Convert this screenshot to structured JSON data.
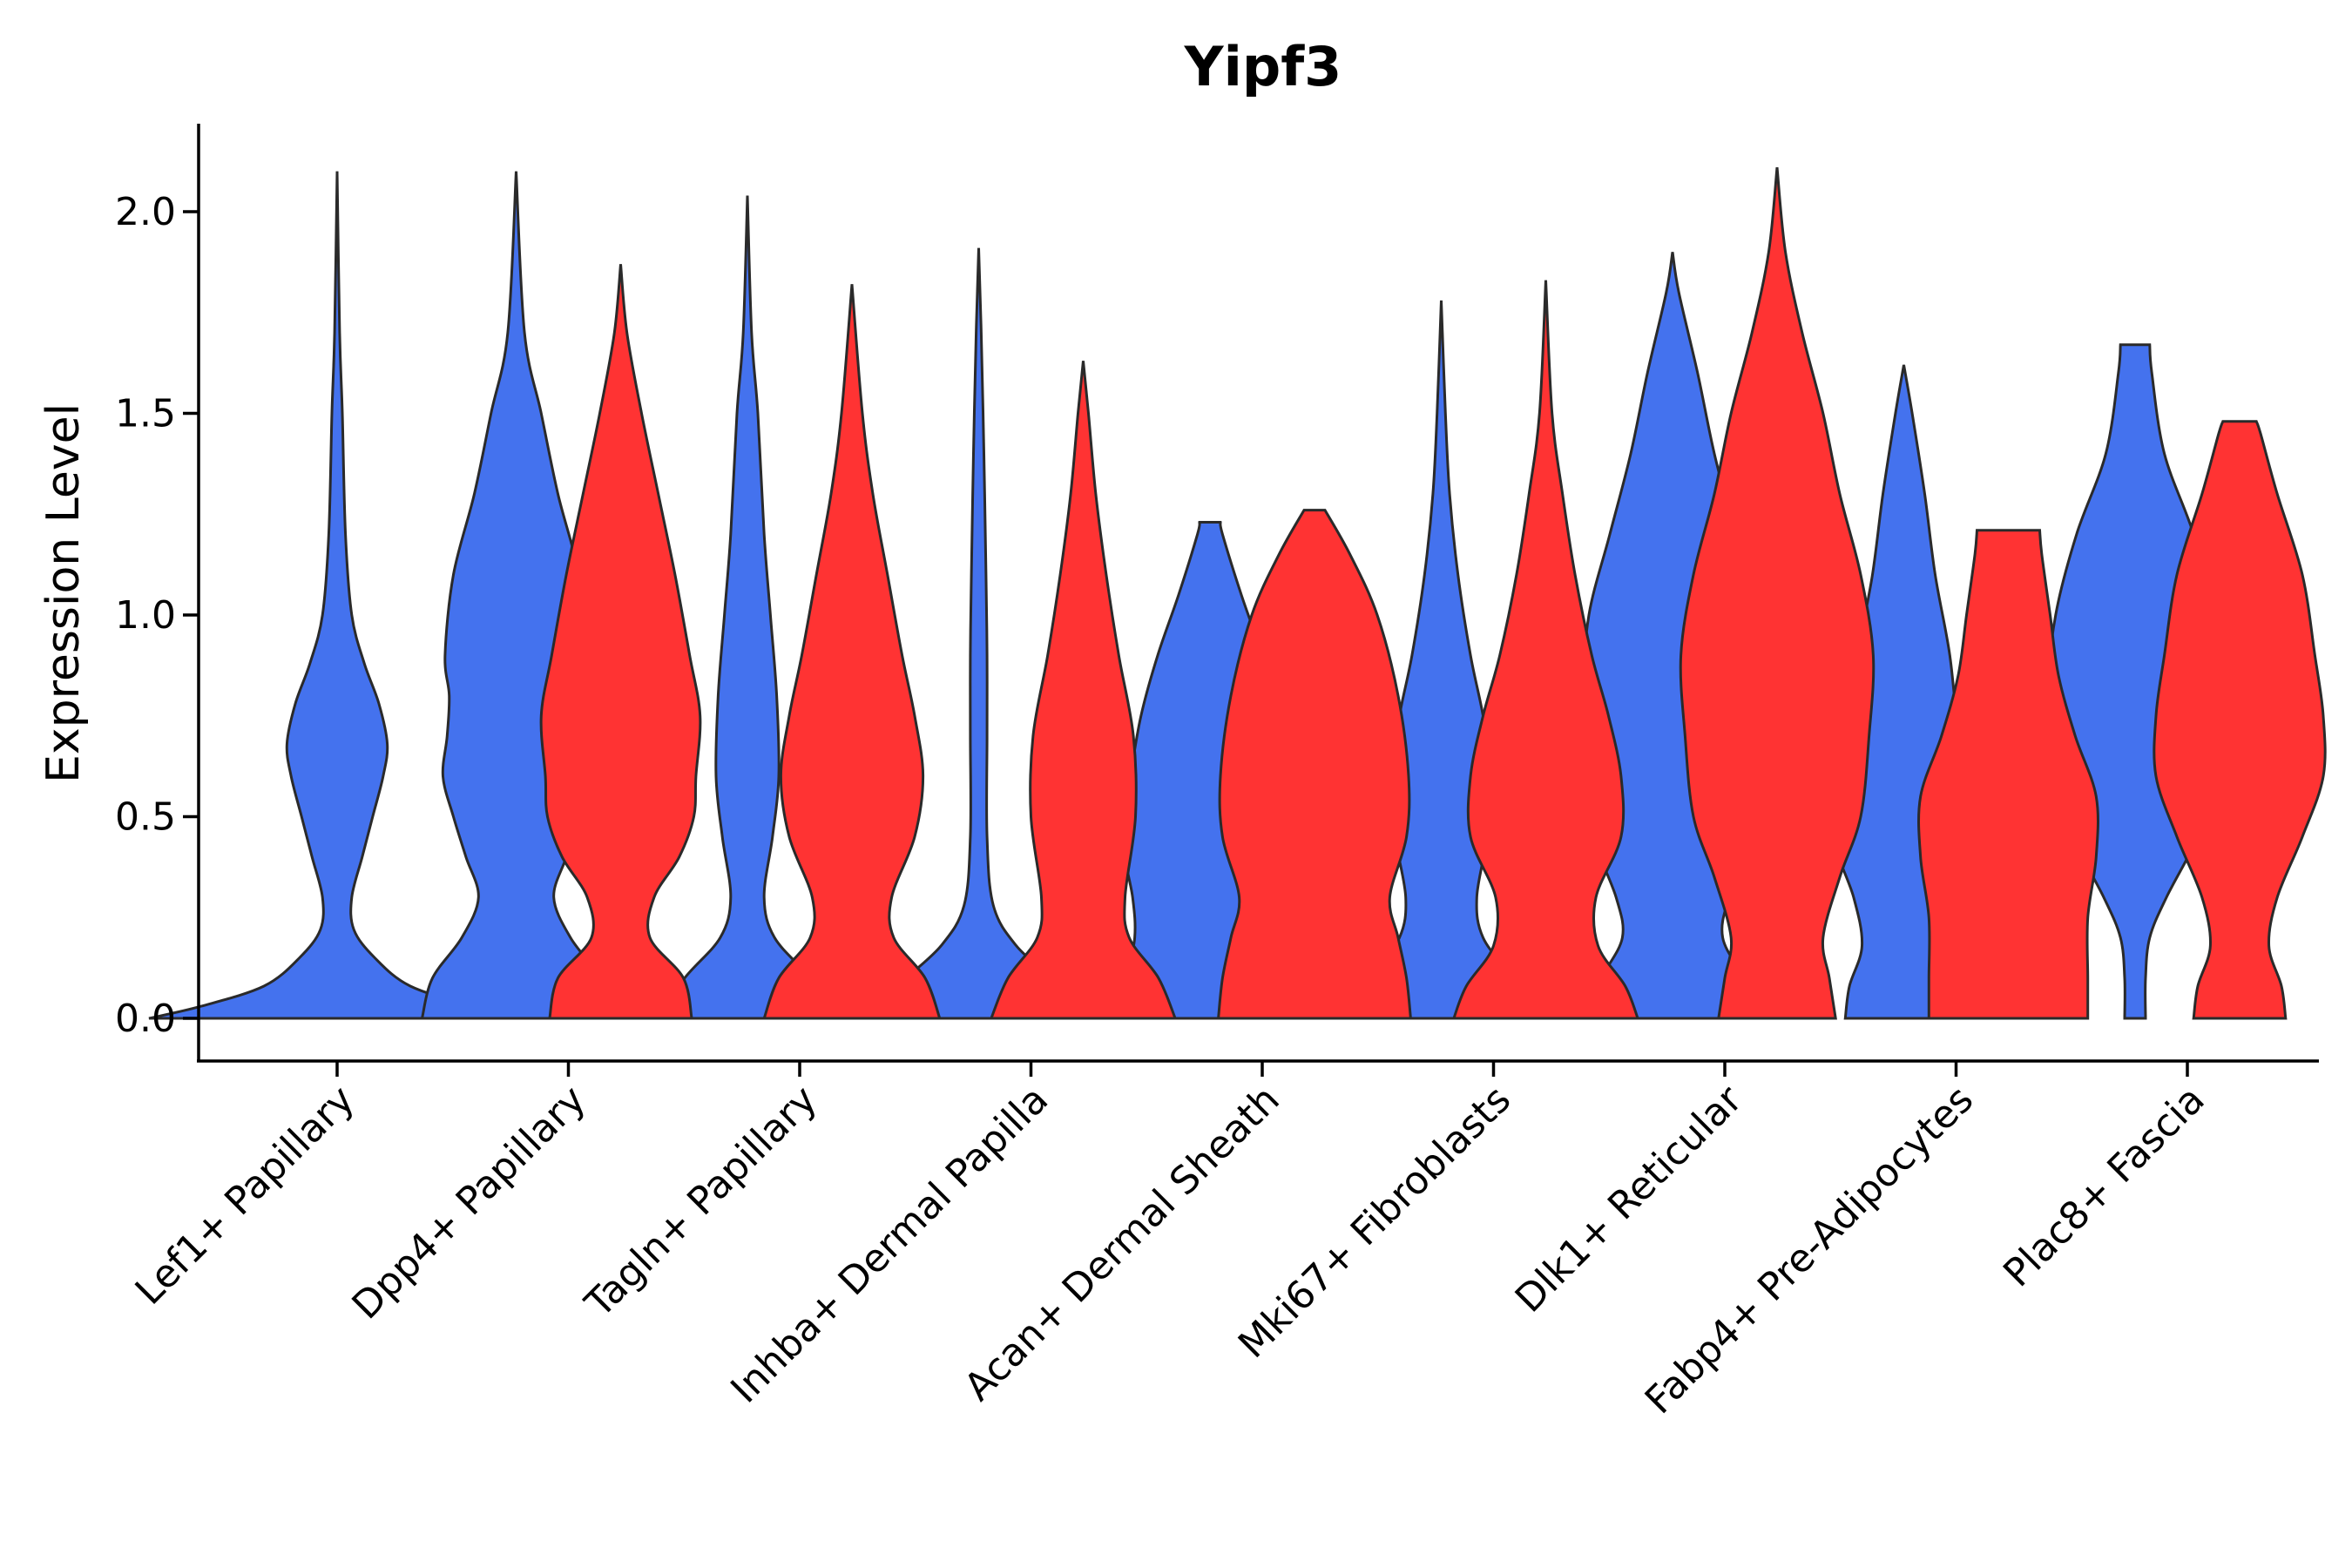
{
  "chart_data": {
    "type": "violin",
    "title": "Yipf3",
    "xlabel": "",
    "ylabel": "Expression Level",
    "ylim": [
      -0.1,
      2.2
    ],
    "yticks": [
      "0.0",
      "0.5",
      "1.0",
      "1.5",
      "2.0"
    ],
    "categories": [
      "Lef1+ Papillary",
      "Dpp4+ Papillary",
      "Tagln+ Papillary",
      "Inhba+ Dermal Papilla",
      "Acan+ Dermal Sheath",
      "Mki67+ Fibroblasts",
      "Dlk1+ Reticular",
      "Fabp4+ Pre-Adipocytes",
      "Plac8+ Fascia"
    ],
    "series": [
      {
        "name": "blue",
        "color": "#4472ee",
        "violins": [
          {
            "category": 0,
            "max": 2.1,
            "profile": [
              [
                0,
                0.9
              ],
              [
                0.03,
                0.65
              ],
              [
                0.08,
                0.35
              ],
              [
                0.15,
                0.18
              ],
              [
                0.22,
                0.08
              ],
              [
                0.3,
                0.07
              ],
              [
                0.4,
                0.12
              ],
              [
                0.5,
                0.17
              ],
              [
                0.6,
                0.22
              ],
              [
                0.68,
                0.24
              ],
              [
                0.78,
                0.2
              ],
              [
                0.88,
                0.13
              ],
              [
                1.0,
                0.07
              ],
              [
                1.2,
                0.04
              ],
              [
                1.5,
                0.025
              ],
              [
                1.7,
                0.012
              ],
              [
                2.1,
                0.0
              ]
            ]
          },
          {
            "category": 1,
            "max": 2.1,
            "profile": [
              [
                0,
                0.45
              ],
              [
                0.1,
                0.4
              ],
              [
                0.2,
                0.26
              ],
              [
                0.3,
                0.18
              ],
              [
                0.4,
                0.24
              ],
              [
                0.5,
                0.3
              ],
              [
                0.6,
                0.35
              ],
              [
                0.7,
                0.33
              ],
              [
                0.8,
                0.32
              ],
              [
                0.9,
                0.34
              ],
              [
                1.1,
                0.3
              ],
              [
                1.3,
                0.2
              ],
              [
                1.5,
                0.12
              ],
              [
                1.7,
                0.04
              ],
              [
                2.1,
                0.0
              ]
            ]
          },
          {
            "category": 2,
            "max": 2.04,
            "profile": [
              [
                0,
                0.42
              ],
              [
                0.1,
                0.3
              ],
              [
                0.2,
                0.13
              ],
              [
                0.3,
                0.08
              ],
              [
                0.45,
                0.12
              ],
              [
                0.6,
                0.15
              ],
              [
                0.8,
                0.14
              ],
              [
                1.0,
                0.11
              ],
              [
                1.2,
                0.08
              ],
              [
                1.5,
                0.05
              ],
              [
                1.7,
                0.02
              ],
              [
                2.04,
                0.0
              ]
            ]
          },
          {
            "category": 3,
            "max": 1.91,
            "profile": [
              [
                0,
                0.45
              ],
              [
                0.08,
                0.38
              ],
              [
                0.18,
                0.18
              ],
              [
                0.28,
                0.07
              ],
              [
                0.45,
                0.04
              ],
              [
                0.7,
                0.04
              ],
              [
                0.9,
                0.04
              ],
              [
                1.1,
                0.035
              ],
              [
                1.4,
                0.025
              ],
              [
                1.7,
                0.012
              ],
              [
                1.91,
                0.0
              ]
            ]
          },
          {
            "category": 4,
            "max": 1.23,
            "profile": [
              [
                0,
                0.44
              ],
              [
                0.1,
                0.4
              ],
              [
                0.2,
                0.36
              ],
              [
                0.3,
                0.37
              ],
              [
                0.45,
                0.42
              ],
              [
                0.6,
                0.38
              ],
              [
                0.75,
                0.33
              ],
              [
                0.9,
                0.25
              ],
              [
                1.05,
                0.15
              ],
              [
                1.2,
                0.06
              ],
              [
                1.23,
                0.05
              ]
            ]
          },
          {
            "category": 5,
            "max": 1.78,
            "profile": [
              [
                0,
                0.44
              ],
              [
                0.1,
                0.34
              ],
              [
                0.2,
                0.2
              ],
              [
                0.3,
                0.17
              ],
              [
                0.45,
                0.22
              ],
              [
                0.6,
                0.24
              ],
              [
                0.75,
                0.2
              ],
              [
                0.9,
                0.14
              ],
              [
                1.1,
                0.08
              ],
              [
                1.3,
                0.04
              ],
              [
                1.5,
                0.02
              ],
              [
                1.78,
                0.0
              ]
            ]
          },
          {
            "category": 6,
            "max": 1.9,
            "profile": [
              [
                0,
                0.42
              ],
              [
                0.1,
                0.34
              ],
              [
                0.2,
                0.24
              ],
              [
                0.3,
                0.27
              ],
              [
                0.45,
                0.38
              ],
              [
                0.6,
                0.42
              ],
              [
                0.8,
                0.43
              ],
              [
                1.0,
                0.4
              ],
              [
                1.2,
                0.3
              ],
              [
                1.4,
                0.2
              ],
              [
                1.6,
                0.12
              ],
              [
                1.8,
                0.03
              ],
              [
                1.9,
                0.0
              ]
            ]
          },
          {
            "category": 7,
            "max": 1.62,
            "profile": [
              [
                0,
                0.28
              ],
              [
                0.08,
                0.26
              ],
              [
                0.18,
                0.2
              ],
              [
                0.3,
                0.24
              ],
              [
                0.45,
                0.34
              ],
              [
                0.55,
                0.3
              ],
              [
                0.7,
                0.26
              ],
              [
                0.9,
                0.22
              ],
              [
                1.1,
                0.15
              ],
              [
                1.3,
                0.1
              ],
              [
                1.5,
                0.04
              ],
              [
                1.62,
                0.0
              ]
            ]
          },
          {
            "category": 8,
            "max": 1.67,
            "profile": [
              [
                0,
                0.05
              ],
              [
                0.1,
                0.05
              ],
              [
                0.2,
                0.07
              ],
              [
                0.3,
                0.15
              ],
              [
                0.45,
                0.3
              ],
              [
                0.6,
                0.4
              ],
              [
                0.8,
                0.42
              ],
              [
                1.0,
                0.38
              ],
              [
                1.2,
                0.28
              ],
              [
                1.4,
                0.14
              ],
              [
                1.6,
                0.08
              ],
              [
                1.67,
                0.07
              ]
            ]
          }
        ]
      },
      {
        "name": "red",
        "color": "#ff3333",
        "violins": [
          {
            "category": 1,
            "max": 1.87,
            "profile": [
              [
                0,
                0.34
              ],
              [
                0.1,
                0.3
              ],
              [
                0.2,
                0.14
              ],
              [
                0.3,
                0.16
              ],
              [
                0.4,
                0.28
              ],
              [
                0.5,
                0.35
              ],
              [
                0.6,
                0.36
              ],
              [
                0.75,
                0.38
              ],
              [
                0.9,
                0.33
              ],
              [
                1.1,
                0.26
              ],
              [
                1.3,
                0.18
              ],
              [
                1.5,
                0.1
              ],
              [
                1.7,
                0.03
              ],
              [
                1.87,
                0.0
              ]
            ]
          },
          {
            "category": 2,
            "max": 1.82,
            "profile": [
              [
                0,
                0.42
              ],
              [
                0.1,
                0.35
              ],
              [
                0.2,
                0.2
              ],
              [
                0.3,
                0.19
              ],
              [
                0.45,
                0.3
              ],
              [
                0.6,
                0.34
              ],
              [
                0.75,
                0.3
              ],
              [
                0.9,
                0.24
              ],
              [
                1.1,
                0.17
              ],
              [
                1.3,
                0.1
              ],
              [
                1.5,
                0.05
              ],
              [
                1.82,
                0.0
              ]
            ]
          },
          {
            "category": 3,
            "max": 1.63,
            "profile": [
              [
                0,
                0.44
              ],
              [
                0.1,
                0.36
              ],
              [
                0.2,
                0.22
              ],
              [
                0.3,
                0.2
              ],
              [
                0.5,
                0.25
              ],
              [
                0.7,
                0.24
              ],
              [
                0.9,
                0.17
              ],
              [
                1.1,
                0.11
              ],
              [
                1.3,
                0.06
              ],
              [
                1.5,
                0.025
              ],
              [
                1.63,
                0.0
              ]
            ]
          },
          {
            "category": 4,
            "max": 1.26,
            "profile": [
              [
                0,
                0.46
              ],
              [
                0.1,
                0.44
              ],
              [
                0.2,
                0.4
              ],
              [
                0.3,
                0.36
              ],
              [
                0.45,
                0.44
              ],
              [
                0.6,
                0.45
              ],
              [
                0.8,
                0.4
              ],
              [
                1.0,
                0.3
              ],
              [
                1.15,
                0.17
              ],
              [
                1.26,
                0.05
              ]
            ]
          },
          {
            "category": 5,
            "max": 1.83,
            "profile": [
              [
                0,
                0.44
              ],
              [
                0.08,
                0.38
              ],
              [
                0.18,
                0.25
              ],
              [
                0.3,
                0.24
              ],
              [
                0.45,
                0.36
              ],
              [
                0.6,
                0.36
              ],
              [
                0.75,
                0.3
              ],
              [
                0.9,
                0.22
              ],
              [
                1.1,
                0.14
              ],
              [
                1.3,
                0.08
              ],
              [
                1.5,
                0.03
              ],
              [
                1.83,
                0.0
              ]
            ]
          },
          {
            "category": 6,
            "max": 2.11,
            "profile": [
              [
                0,
                0.28
              ],
              [
                0.1,
                0.25
              ],
              [
                0.2,
                0.22
              ],
              [
                0.35,
                0.3
              ],
              [
                0.5,
                0.4
              ],
              [
                0.7,
                0.44
              ],
              [
                0.9,
                0.46
              ],
              [
                1.1,
                0.4
              ],
              [
                1.3,
                0.3
              ],
              [
                1.5,
                0.22
              ],
              [
                1.7,
                0.12
              ],
              [
                1.9,
                0.04
              ],
              [
                2.11,
                0.0
              ]
            ]
          },
          {
            "category": 7,
            "max": 1.21,
            "profile": [
              [
                0,
                0.38
              ],
              [
                0.1,
                0.38
              ],
              [
                0.25,
                0.38
              ],
              [
                0.4,
                0.42
              ],
              [
                0.55,
                0.42
              ],
              [
                0.7,
                0.32
              ],
              [
                0.85,
                0.24
              ],
              [
                1.0,
                0.2
              ],
              [
                1.15,
                0.16
              ],
              [
                1.21,
                0.15
              ]
            ]
          },
          {
            "category": 8,
            "max": 1.48,
            "profile": [
              [
                0,
                0.22
              ],
              [
                0.08,
                0.2
              ],
              [
                0.18,
                0.14
              ],
              [
                0.3,
                0.18
              ],
              [
                0.45,
                0.3
              ],
              [
                0.6,
                0.4
              ],
              [
                0.75,
                0.4
              ],
              [
                0.9,
                0.36
              ],
              [
                1.1,
                0.3
              ],
              [
                1.3,
                0.18
              ],
              [
                1.45,
                0.1
              ],
              [
                1.48,
                0.08
              ]
            ]
          }
        ]
      }
    ]
  }
}
